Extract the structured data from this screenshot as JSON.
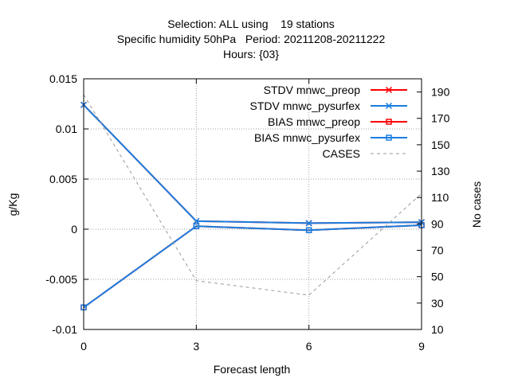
{
  "chart_data": {
    "type": "line",
    "title_lines": [
      "Selection: ALL using    19 stations",
      "Specific humidity 50hPa   Period: 20211208-20211222",
      "Hours: {03}"
    ],
    "xlabel": "Forecast length",
    "ylabel": "g/Kg",
    "y2label": "No cases",
    "x": [
      0,
      3,
      6,
      9
    ],
    "xlim": [
      0,
      9
    ],
    "ylim": [
      -0.01,
      0.015
    ],
    "y2lim": [
      10,
      200
    ],
    "xticks": [
      "0",
      "3",
      "6",
      "9"
    ],
    "yticks": [
      {
        "v": 0.015,
        "label": "0.015"
      },
      {
        "v": 0.01,
        "label": "0.01"
      },
      {
        "v": 0.005,
        "label": "0.005"
      },
      {
        "v": 0,
        "label": "0"
      },
      {
        "v": -0.005,
        "label": "-0.005"
      },
      {
        "v": -0.01,
        "label": "-0.01"
      }
    ],
    "y2ticks": [
      "190",
      "170",
      "150",
      "130",
      "110",
      "90",
      "70",
      "50",
      "30",
      "10"
    ],
    "grid": true,
    "legend_position": "top-right",
    "series": [
      {
        "name": "STDV mnwc_preop",
        "axis": "y",
        "color": "#ff0000",
        "marker": "x",
        "dash": "",
        "values": [
          0.0124,
          0.0008,
          0.0006,
          0.0007
        ]
      },
      {
        "name": "STDV mnwc_pysurfex",
        "axis": "y",
        "color": "#1a7ee0",
        "marker": "x",
        "dash": "",
        "values": [
          0.0124,
          0.0008,
          0.0006,
          0.0007
        ]
      },
      {
        "name": "BIAS mnwc_preop",
        "axis": "y",
        "color": "#ff0000",
        "marker": "square",
        "dash": "",
        "values": [
          -0.0078,
          0.0003,
          -0.0001,
          0.0004
        ]
      },
      {
        "name": "BIAS mnwc_pysurfex",
        "axis": "y",
        "color": "#1a7ee0",
        "marker": "square",
        "dash": "",
        "values": [
          -0.0078,
          0.0003,
          -0.0001,
          0.0004
        ]
      },
      {
        "name": "CASES",
        "axis": "y2",
        "color": "#999999",
        "marker": "",
        "dash": "4,4",
        "values": [
          188,
          47,
          36,
          113
        ]
      }
    ]
  }
}
